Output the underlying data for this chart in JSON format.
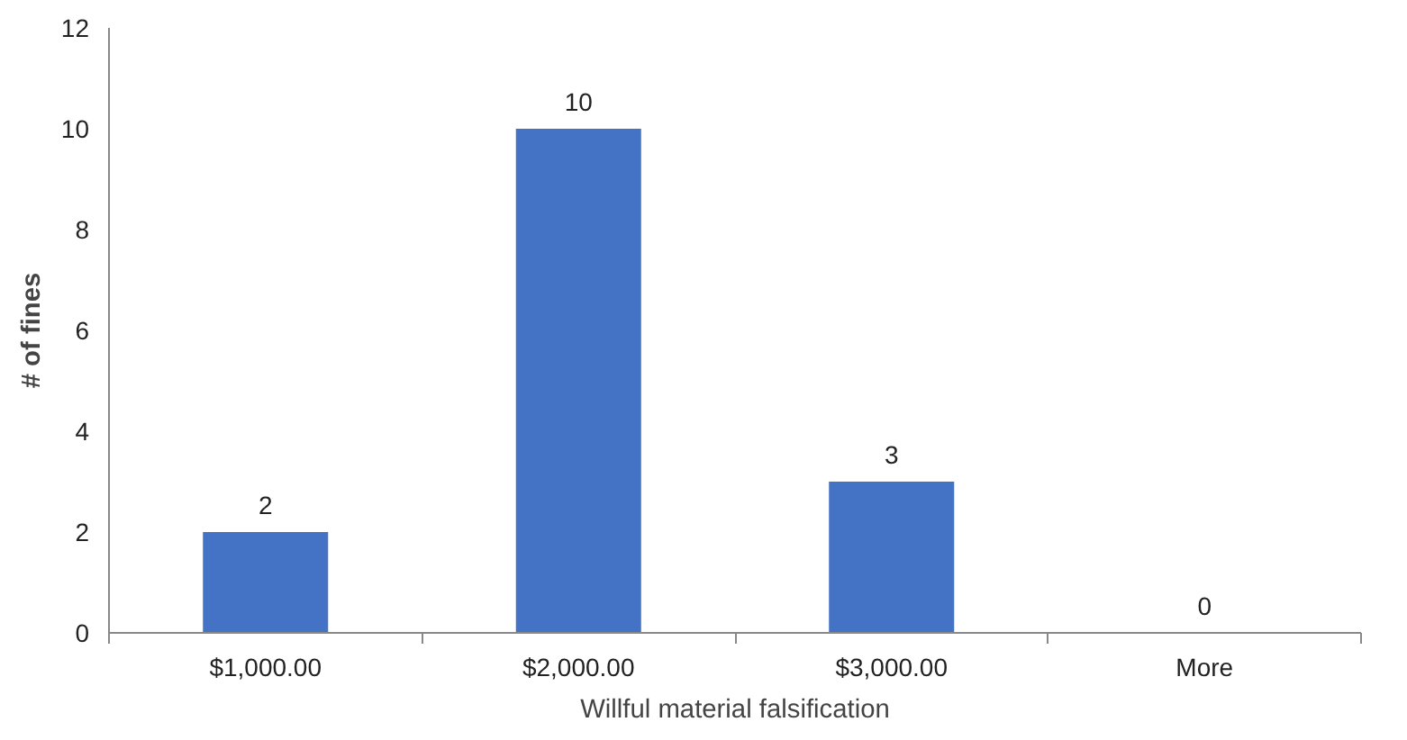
{
  "chart_data": {
    "type": "bar",
    "categories": [
      "$1,000.00",
      "$2,000.00",
      "$3,000.00",
      "More"
    ],
    "values": [
      2,
      10,
      3,
      0
    ],
    "color": "#4472c4",
    "xlabel": "Willful material falsification",
    "ylabel": "# of fines",
    "ylim": [
      0,
      12
    ],
    "yticks": [
      0,
      2,
      4,
      6,
      8,
      10,
      12
    ],
    "grid": false,
    "data_labels": true
  }
}
